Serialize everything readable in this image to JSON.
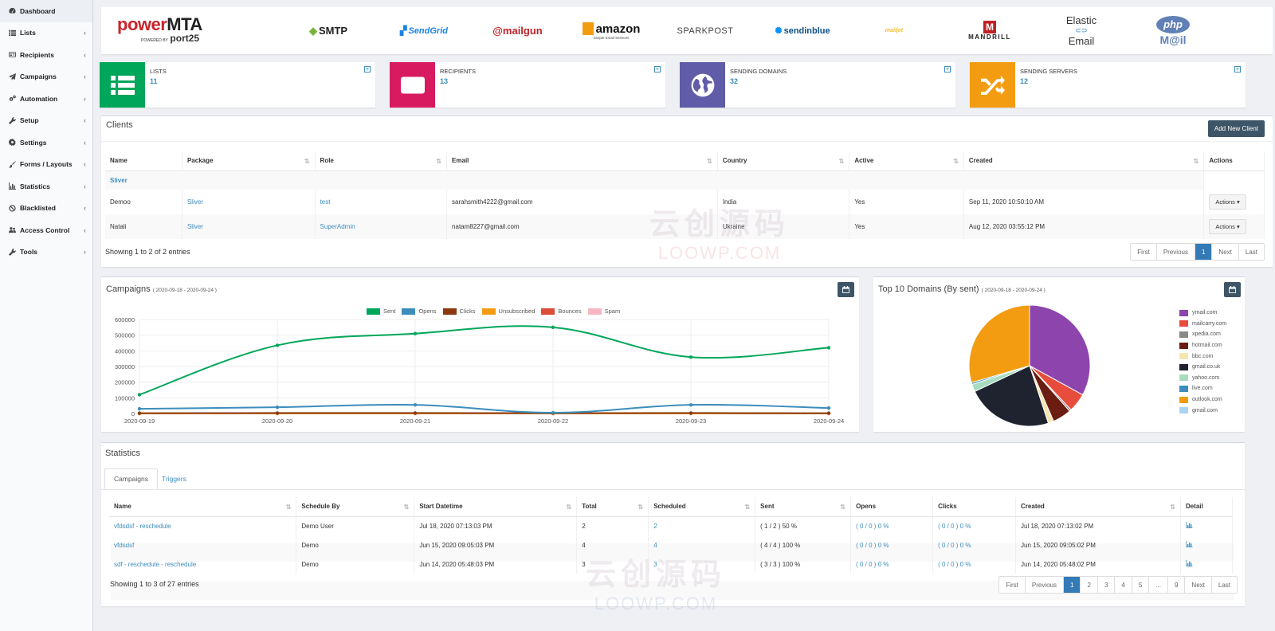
{
  "sidebar": [
    {
      "label": "Dashboard",
      "icon": "dashboard-icon",
      "active": true
    },
    {
      "label": "Lists",
      "icon": "list-icon"
    },
    {
      "label": "Recipients",
      "icon": "id-card-icon"
    },
    {
      "label": "Campaigns",
      "icon": "paper-plane-icon"
    },
    {
      "label": "Automation",
      "icon": "cogs-icon"
    },
    {
      "label": "Setup",
      "icon": "wrench-icon"
    },
    {
      "label": "Settings",
      "icon": "gear-icon"
    },
    {
      "label": "Forms / Layouts",
      "icon": "paintbrush-icon"
    },
    {
      "label": "Statistics",
      "icon": "bar-chart-icon"
    },
    {
      "label": "Blacklisted",
      "icon": "ban-icon"
    },
    {
      "label": "Access Control",
      "icon": "users-icon"
    },
    {
      "label": "Tools",
      "icon": "wrench-icon"
    }
  ],
  "logos": {
    "powermta": {
      "main": "power",
      "accent": "MTA",
      "sub": "POWERED BY",
      "sub2": "port25"
    },
    "smtp": "SMTP",
    "sendgrid": "SendGrid",
    "mailgun": "@mailgun",
    "amazon": {
      "main": "amazon",
      "sub": "Simple Email Services"
    },
    "sparkpost": "SPARKPOST",
    "sendinblue": "sendinblue",
    "mailjet": "mailjet",
    "mandrill": "MANDRILL",
    "elastic": {
      "line1": "Elastic",
      "line2": "Email"
    },
    "phpmail": {
      "line1": "php",
      "line2": "M@il"
    }
  },
  "info_boxes": [
    {
      "label": "LISTS",
      "value": "11",
      "color": "#00a65a",
      "icon": "list-icon"
    },
    {
      "label": "RECIPIENTS",
      "value": "13",
      "color": "#d81b60",
      "icon": "id-card-icon"
    },
    {
      "label": "SENDING DOMAINS",
      "value": "32",
      "color": "#605ca8",
      "icon": "globe-icon"
    },
    {
      "label": "SENDING SERVERS",
      "value": "12",
      "color": "#f39c12",
      "icon": "shuffle-icon"
    }
  ],
  "clients": {
    "title": "Clients",
    "add_button": "Add New Client",
    "columns": [
      "Name",
      "Package",
      "Role",
      "Email",
      "Country",
      "Active",
      "Created",
      "Actions"
    ],
    "group_label": "Sliver",
    "rows": [
      {
        "name": "Demoo",
        "package": "Sliver",
        "role": "test",
        "email": "sarahsmith4222@gmail.com",
        "country": "India",
        "active": "Yes",
        "created": "Sep 11, 2020 10:50:10 AM",
        "action": "Actions"
      },
      {
        "name": "Natali",
        "package": "Sliver",
        "role": "SuperAdmin",
        "email": "natam8227@gmail.com",
        "country": "Ukraine",
        "active": "Yes",
        "created": "Aug 12, 2020 03:55:12 PM",
        "action": "Actions"
      }
    ],
    "footer": "Showing 1 to 2 of 2 entries",
    "pager": [
      "First",
      "Previous",
      "1",
      "Next",
      "Last"
    ]
  },
  "campaigns_chart": {
    "title": "Campaigns",
    "range": "( 2020-09-18 - 2020-09-24 )",
    "legend": [
      {
        "name": "Sent",
        "color": "#00a65a"
      },
      {
        "name": "Opens",
        "color": "#3c8dbc"
      },
      {
        "name": "Clicks",
        "color": "#8b3a0f"
      },
      {
        "name": "Unsubscribed",
        "color": "#f39c12"
      },
      {
        "name": "Bounces",
        "color": "#dd4b39"
      },
      {
        "name": "Spam",
        "color": "#f6b6c2"
      }
    ]
  },
  "domains_chart": {
    "title": "Top 10 Domains (By sent)",
    "range": "( 2020-09-18 - 2020-09-24 )"
  },
  "chart_data": [
    {
      "type": "line",
      "x": [
        "2020-09-19",
        "2020-09-20",
        "2020-09-21",
        "2020-09-22",
        "2020-09-23",
        "2020-09-24"
      ],
      "ylim": [
        0,
        600000
      ],
      "yticks": [
        0,
        100000,
        200000,
        300000,
        400000,
        500000,
        600000
      ],
      "series": [
        {
          "name": "Sent",
          "values": [
            120000,
            435000,
            510000,
            550000,
            360000,
            420000
          ]
        },
        {
          "name": "Opens",
          "values": [
            30000,
            40000,
            55000,
            5000,
            55000,
            35000
          ]
        },
        {
          "name": "Clicks",
          "values": [
            2000,
            3000,
            3000,
            2000,
            3000,
            2000
          ]
        },
        {
          "name": "Unsubscribed",
          "values": [
            0,
            0,
            0,
            0,
            0,
            0
          ]
        },
        {
          "name": "Bounces",
          "values": [
            0,
            0,
            0,
            0,
            0,
            0
          ]
        },
        {
          "name": "Spam",
          "values": [
            0,
            0,
            0,
            0,
            0,
            0
          ]
        }
      ],
      "legend": "top"
    },
    {
      "type": "pie",
      "labels": [
        "ymail.com",
        "mailcarry.com",
        "xpedia.com",
        "hotmail.com",
        "bbc.com",
        "gmail.co.uk",
        "yahoo.com",
        "live.com",
        "outlook.com",
        "gmail.com"
      ],
      "colors": [
        "#8e44ad",
        "#e74c3c",
        "#888888",
        "#6b1d12",
        "#f5e6b0",
        "#1f2330",
        "#a8dcc0",
        "#3c8dbc",
        "#f39c12",
        "#a9d4f0"
      ],
      "values": [
        33,
        5,
        0.5,
        5,
        1.5,
        23,
        2,
        0.5,
        29.5,
        0
      ],
      "legend": "right"
    }
  ],
  "statistics": {
    "title": "Statistics",
    "tabs": [
      "Campaigns",
      "Triggers"
    ],
    "columns": [
      "Name",
      "Schedule By",
      "Start Datetime",
      "Total",
      "Scheduled",
      "Sent",
      "Opens",
      "Clicks",
      "Created",
      "Detail"
    ],
    "rows": [
      {
        "name": "vfdsdsf - reschedule",
        "by": "Demo User",
        "start": "Jul 18, 2020 07:13:03 PM",
        "total": "2",
        "scheduled": "2",
        "sent": "( 1 / 2 ) 50 %",
        "opens": "( 0 / 0 ) 0 %",
        "clicks": "( 0 / 0 ) 0 %",
        "created": "Jul 18, 2020 07:13:02 PM"
      },
      {
        "name": "vfdsdsf",
        "by": "Demo",
        "start": "Jun 15, 2020 09:05:03 PM",
        "total": "4",
        "scheduled": "4",
        "sent": "( 4 / 4 ) 100 %",
        "opens": "( 0 / 0 ) 0 %",
        "clicks": "( 0 / 0 ) 0 %",
        "created": "Jun 15, 2020 09:05:02 PM"
      },
      {
        "name": "sdf - reschedule - reschedule",
        "by": "Demo",
        "start": "Jun 14, 2020 05:48:03 PM",
        "total": "3",
        "scheduled": "3",
        "sent": "( 3 / 3 ) 100 %",
        "opens": "( 0 / 0 ) 0 %",
        "clicks": "( 0 / 0 ) 0 %",
        "created": "Jun 14, 2020 05:48:02 PM"
      }
    ],
    "footer": "Showing 1 to 3 of 27 entries",
    "pager": [
      "First",
      "Previous",
      "1",
      "2",
      "3",
      "4",
      "5",
      "...",
      "9",
      "Next",
      "Last"
    ]
  },
  "watermark": {
    "cn": "云创源码",
    "en": "LOOWP.COM"
  }
}
